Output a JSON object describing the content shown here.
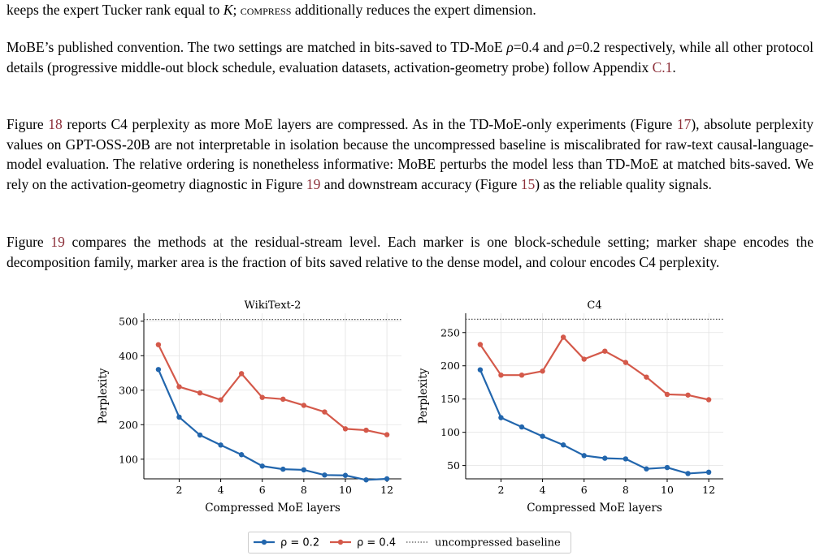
{
  "paragraphs": {
    "p0": {
      "a": "keeps the expert Tucker rank equal to ",
      "b": "K",
      "c": "; ",
      "d": "compress",
      "e": " additionally reduces the expert dimension."
    },
    "p1": {
      "a": "MoBE’s published convention. The two settings are matched in bits-saved to TD-MoE ",
      "b": "ρ",
      "c": "=0.4 and ",
      "d": "ρ",
      "e": "=0.2 respectively, while all other protocol details (progressive middle-out block schedule, evaluation datasets, activation-geometry probe) follow Appendix ",
      "ref1": "C.1",
      "f": "."
    },
    "p2": {
      "a": "Figure ",
      "ref1": "18",
      "b": " reports C4 perplexity as more MoE layers are compressed. As in the TD-MoE-only experiments (Figure ",
      "ref2": "17",
      "c": "), absolute perplexity values on GPT-OSS-20B are not interpretable in isolation because the uncompressed baseline is miscalibrated for raw-text causal-language-model evaluation. The relative ordering is nonetheless informative: MoBE perturbs the model less than TD-MoE at matched bits-saved. We rely on the activation-geometry diagnostic in Figure ",
      "ref3": "19",
      "d": " and downstream accuracy (Figure ",
      "ref4": "15",
      "e": ") as the reliable quality signals."
    },
    "p3": {
      "a": "Figure ",
      "ref1": "19",
      "b": " compares the methods at the residual-stream level. Each marker is one block-schedule setting; marker shape encodes the decomposition family, marker area is the fraction of bits saved relative to the dense model, and colour encodes C4 perplexity."
    }
  },
  "colors": {
    "blue": "#2266ad",
    "red": "#d4594a",
    "baseline": "#555555",
    "ref": "#8c2f39"
  },
  "chart_data": [
    {
      "type": "line",
      "title": "WikiText-2",
      "xlabel": "Compressed MoE layers",
      "ylabel": "Perplexity",
      "xlim": [
        0.3,
        12.7
      ],
      "ylim": [
        43,
        523
      ],
      "xticks": [
        2,
        4,
        6,
        8,
        10,
        12
      ],
      "yticks": [
        100,
        200,
        300,
        400,
        500
      ],
      "grid": true,
      "x": [
        1,
        2,
        3,
        4,
        5,
        6,
        7,
        8,
        9,
        10,
        11,
        12
      ],
      "series": [
        {
          "name": "ρ = 0.2",
          "color": "#2266ad",
          "values": [
            360,
            222,
            170,
            141,
            113,
            80,
            71,
            69,
            54,
            53,
            40,
            43
          ]
        },
        {
          "name": "ρ = 0.4",
          "color": "#d4594a",
          "values": [
            432,
            310,
            292,
            272,
            348,
            279,
            274,
            256,
            237,
            188,
            184,
            171
          ]
        }
      ],
      "baseline": {
        "name": "uncompressed baseline",
        "value": 505
      }
    },
    {
      "type": "line",
      "title": "C4",
      "xlabel": "Compressed MoE layers",
      "ylabel": "Perplexity",
      "xlim": [
        0.3,
        12.7
      ],
      "ylim": [
        30,
        279
      ],
      "xticks": [
        2,
        4,
        6,
        8,
        10,
        12
      ],
      "yticks": [
        50,
        100,
        150,
        200,
        250
      ],
      "grid": true,
      "x": [
        1,
        2,
        3,
        4,
        5,
        6,
        7,
        8,
        9,
        10,
        11,
        12
      ],
      "series": [
        {
          "name": "ρ = 0.2",
          "color": "#2266ad",
          "values": [
            194,
            122,
            108,
            94,
            81,
            65,
            61,
            60,
            45,
            47,
            38,
            40
          ]
        },
        {
          "name": "ρ = 0.4",
          "color": "#d4594a",
          "values": [
            232,
            186,
            186,
            192,
            243,
            210,
            222,
            205,
            183,
            157,
            156,
            149
          ]
        }
      ],
      "baseline": {
        "name": "uncompressed baseline",
        "value": 270
      }
    }
  ],
  "legend": {
    "items": [
      {
        "label": "ρ = 0.2"
      },
      {
        "label": "ρ = 0.4"
      },
      {
        "label": "uncompressed baseline"
      }
    ]
  }
}
